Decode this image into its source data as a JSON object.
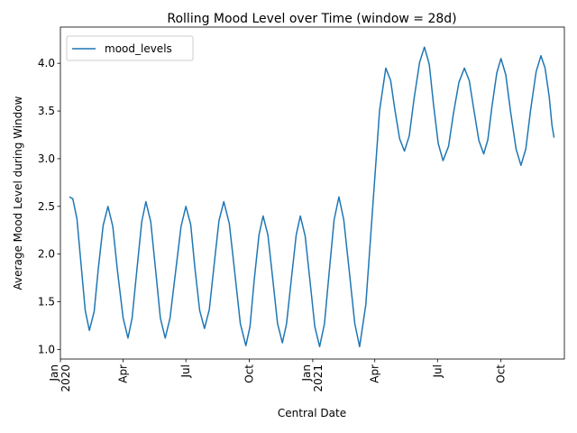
{
  "chart_data": {
    "type": "line",
    "title": "Rolling Mood Level over Time (window = 28d)",
    "x_label": "Central Date",
    "y_label": "Average Mood Level during Window",
    "legend": "upper left",
    "x": [
      "2020-01-14",
      "2020-01-19",
      "2020-01-25",
      "2020-01-31",
      "2020-02-06",
      "2020-02-12",
      "2020-02-19",
      "2020-02-25",
      "2020-03-03",
      "2020-03-10",
      "2020-03-17",
      "2020-03-24",
      "2020-04-01",
      "2020-04-08",
      "2020-04-14",
      "2020-04-21",
      "2020-04-28",
      "2020-05-04",
      "2020-05-11",
      "2020-05-18",
      "2020-05-25",
      "2020-06-01",
      "2020-06-08",
      "2020-06-16",
      "2020-06-24",
      "2020-07-01",
      "2020-07-08",
      "2020-07-14",
      "2020-07-21",
      "2020-07-28",
      "2020-08-04",
      "2020-08-11",
      "2020-08-18",
      "2020-08-25",
      "2020-09-02",
      "2020-09-10",
      "2020-09-18",
      "2020-09-26",
      "2020-10-02",
      "2020-10-08",
      "2020-10-15",
      "2020-10-21",
      "2020-10-28",
      "2020-11-04",
      "2020-11-11",
      "2020-11-18",
      "2020-11-24",
      "2020-12-01",
      "2020-12-08",
      "2020-12-14",
      "2020-12-21",
      "2020-12-28",
      "2021-01-04",
      "2021-01-11",
      "2021-01-18",
      "2021-01-25",
      "2021-02-01",
      "2021-02-08",
      "2021-02-15",
      "2021-02-23",
      "2021-03-03",
      "2021-03-10",
      "2021-03-19",
      "2021-03-29",
      "2021-04-08",
      "2021-04-17",
      "2021-04-24",
      "2021-04-30",
      "2021-05-07",
      "2021-05-14",
      "2021-05-21",
      "2021-05-28",
      "2021-06-05",
      "2021-06-12",
      "2021-06-19",
      "2021-06-25",
      "2021-07-02",
      "2021-07-09",
      "2021-07-17",
      "2021-07-24",
      "2021-08-01",
      "2021-08-09",
      "2021-08-16",
      "2021-08-23",
      "2021-08-30",
      "2021-09-06",
      "2021-09-12",
      "2021-09-18",
      "2021-09-25",
      "2021-10-01",
      "2021-10-08",
      "2021-10-15",
      "2021-10-23",
      "2021-10-30",
      "2021-11-06",
      "2021-11-13",
      "2021-11-21",
      "2021-11-28",
      "2021-12-04",
      "2021-12-10",
      "2021-12-14",
      "2021-12-17"
    ],
    "series": [
      {
        "name": "mood_levels",
        "color": "#1f77b4",
        "values": [
          2.6,
          2.58,
          2.37,
          1.89,
          1.41,
          1.2,
          1.4,
          1.85,
          2.3,
          2.5,
          2.29,
          1.81,
          1.33,
          1.12,
          1.33,
          1.84,
          2.34,
          2.55,
          2.34,
          1.84,
          1.33,
          1.12,
          1.33,
          1.81,
          2.29,
          2.5,
          2.31,
          1.86,
          1.41,
          1.22,
          1.42,
          1.89,
          2.35,
          2.55,
          2.32,
          1.8,
          1.27,
          1.04,
          1.24,
          1.72,
          2.2,
          2.4,
          2.2,
          1.74,
          1.27,
          1.07,
          1.27,
          1.74,
          2.2,
          2.4,
          2.19,
          1.72,
          1.24,
          1.03,
          1.27,
          1.82,
          2.36,
          2.6,
          2.36,
          1.82,
          1.27,
          1.03,
          1.47,
          2.49,
          3.51,
          3.95,
          3.82,
          3.52,
          3.21,
          3.08,
          3.24,
          3.63,
          4.01,
          4.17,
          3.99,
          3.58,
          3.16,
          2.98,
          3.13,
          3.47,
          3.8,
          3.95,
          3.82,
          3.5,
          3.19,
          3.05,
          3.2,
          3.55,
          3.9,
          4.05,
          3.88,
          3.49,
          3.1,
          2.93,
          3.1,
          3.51,
          3.91,
          4.08,
          3.95,
          3.65,
          3.35,
          3.22
        ]
      }
    ],
    "xlim": [
      "2020-01-01",
      "2022-01-01"
    ],
    "xticks": [
      {
        "value": "2020-01-01",
        "label": [
          "Jan",
          "2020"
        ]
      },
      {
        "value": "2020-04-01",
        "label": "Apr"
      },
      {
        "value": "2020-07-01",
        "label": "Jul"
      },
      {
        "value": "2020-10-01",
        "label": "Oct"
      },
      {
        "value": "2021-01-01",
        "label": [
          "Jan",
          "2021"
        ]
      },
      {
        "value": "2021-04-01",
        "label": "Apr"
      },
      {
        "value": "2021-07-01",
        "label": "Jul"
      },
      {
        "value": "2021-10-01",
        "label": "Oct"
      }
    ],
    "ylim": [
      0.9,
      4.38
    ],
    "yticks": [
      {
        "value": 1,
        "label": "1.0"
      },
      {
        "value": 1.5,
        "label": "1.5"
      },
      {
        "value": 2,
        "label": "2.0"
      },
      {
        "value": 2.5,
        "label": "2.5"
      },
      {
        "value": 3,
        "label": "3.0"
      },
      {
        "value": 3.5,
        "label": "3.5"
      },
      {
        "value": 4,
        "label": "4.0"
      }
    ]
  }
}
